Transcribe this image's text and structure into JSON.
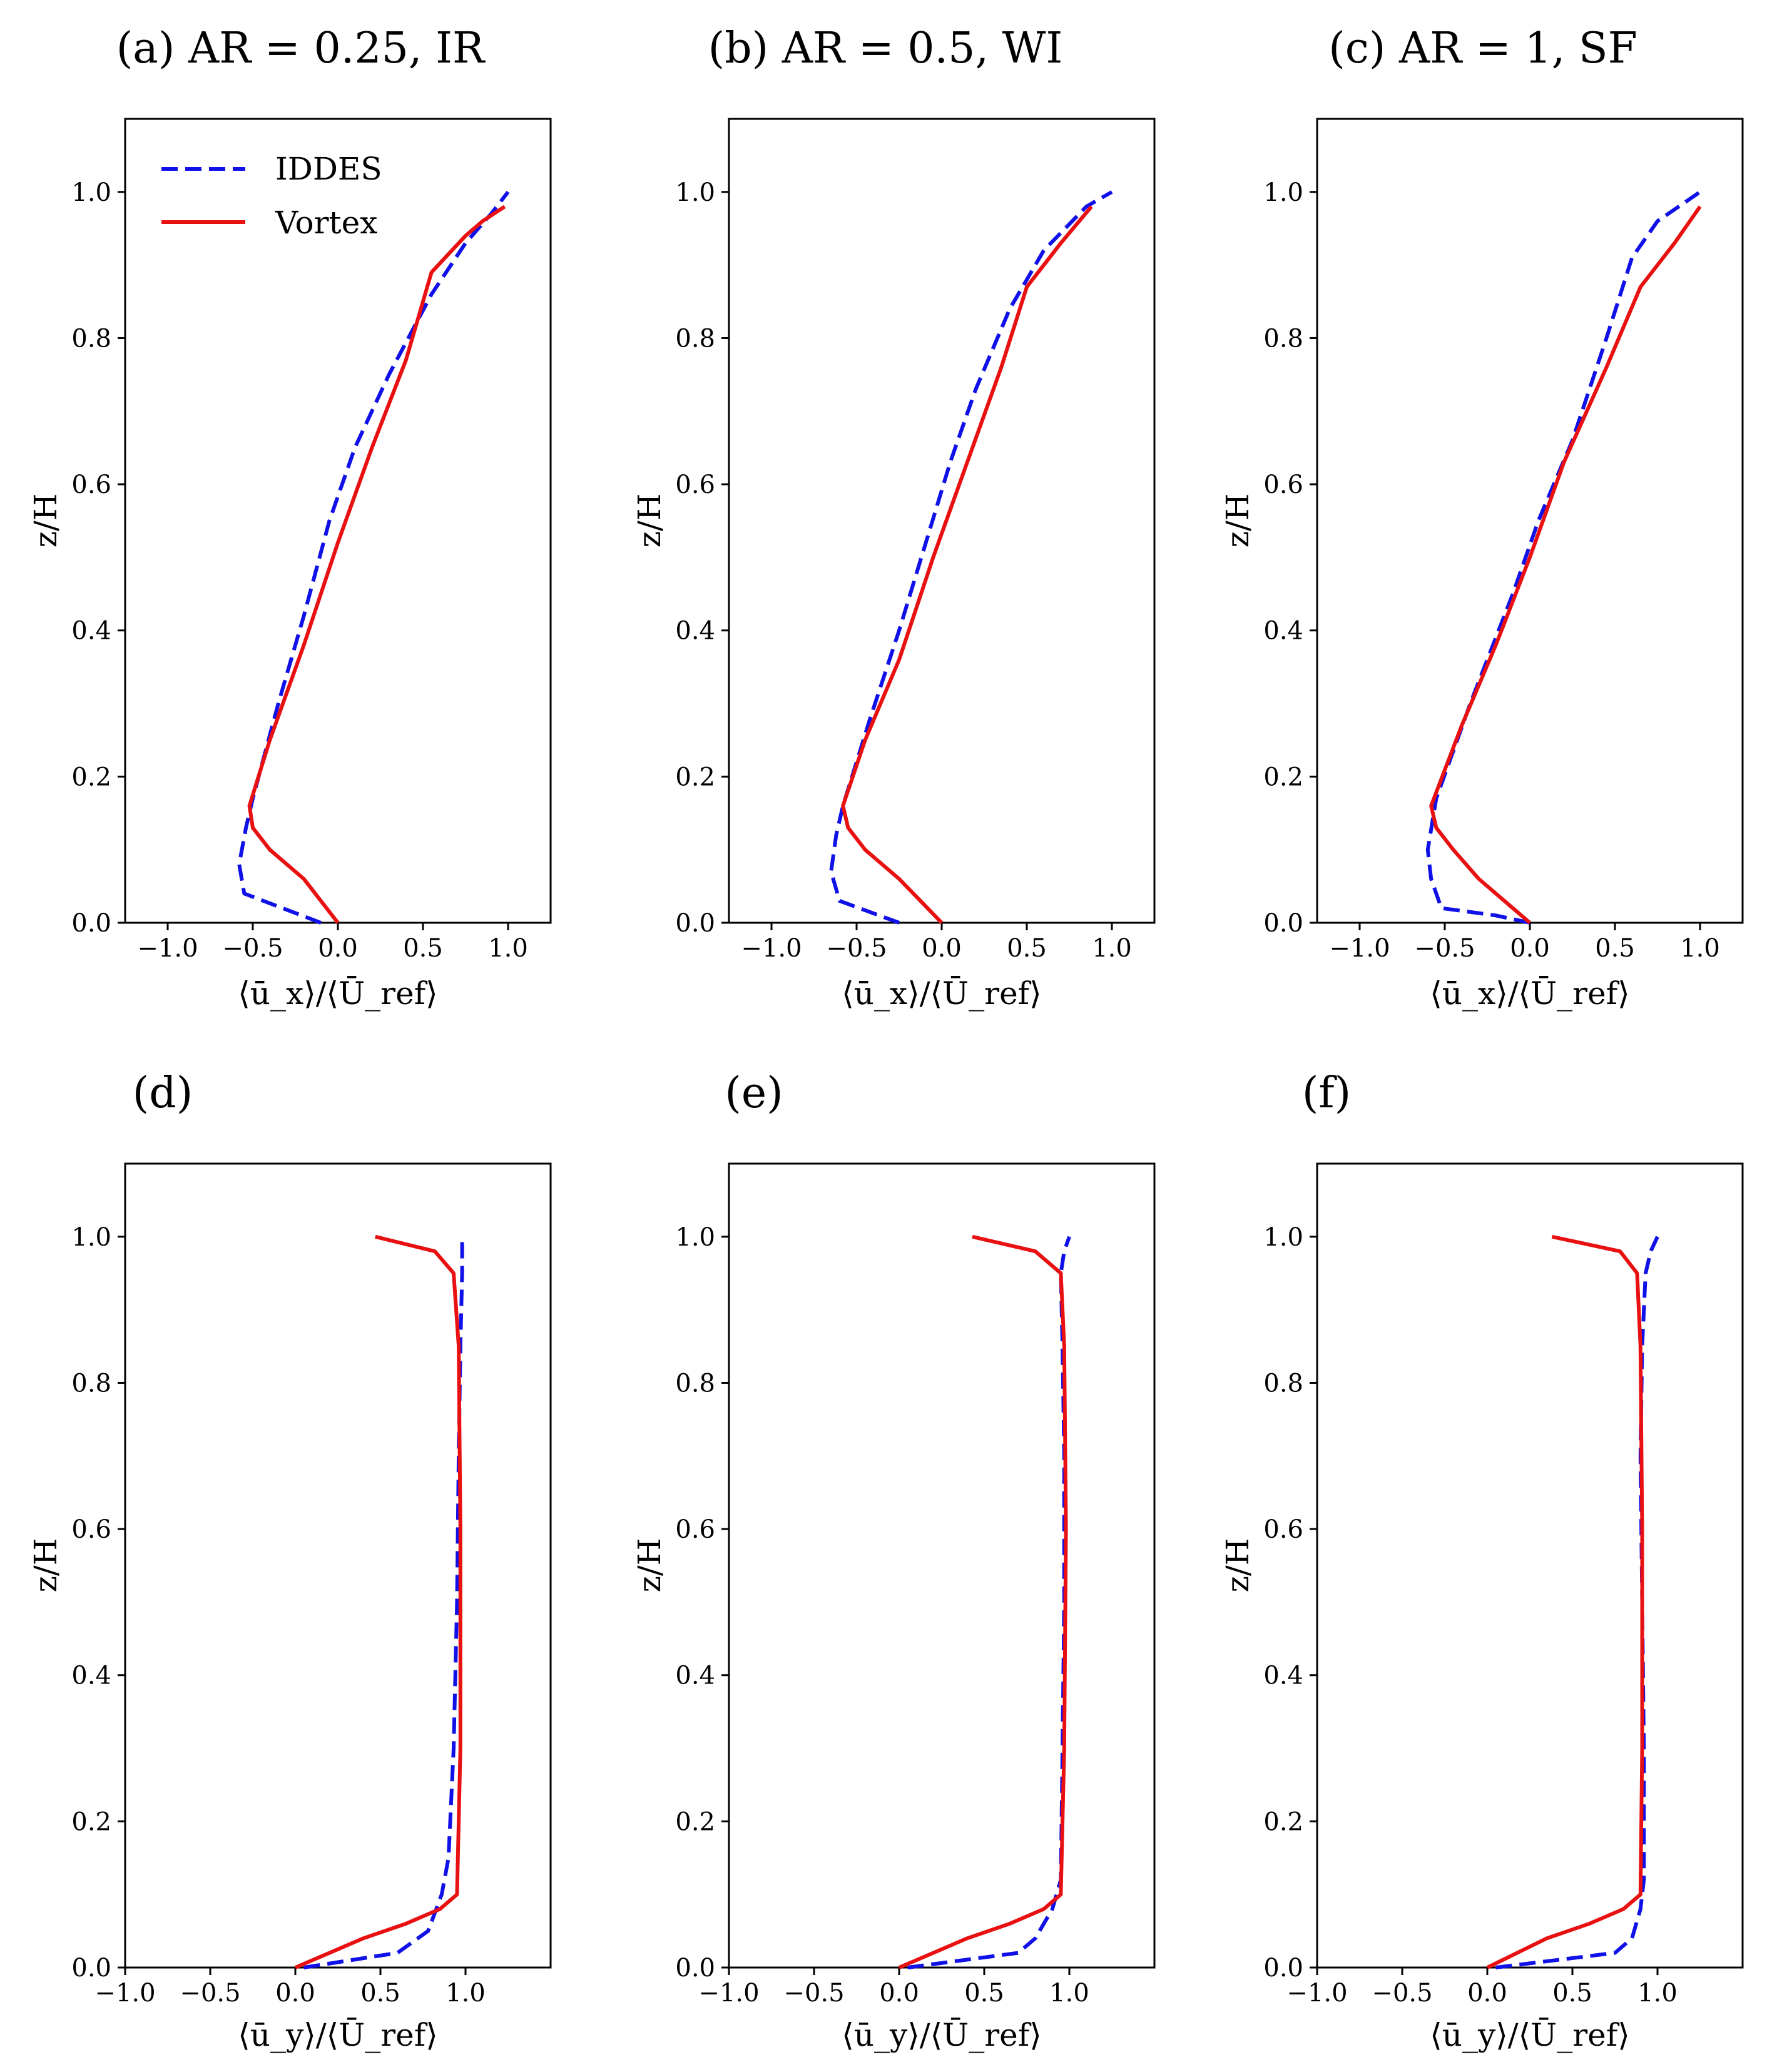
{
  "legend": {
    "iddes": "IDDES",
    "vortex": "Vortex",
    "iddes_color": "#1010e8",
    "vortex_color": "#e81010"
  },
  "chart_data": [
    {
      "type": "line",
      "title": "(a) AR = 0.25, IR",
      "xlabel": "⟨ū_x⟩/⟨Ū_ref⟩",
      "ylabel": "z/H",
      "xlim": [
        -1.25,
        1.25
      ],
      "ylim": [
        0.0,
        1.1
      ],
      "xticks": [
        "−1.0",
        "−0.5",
        "0.0",
        "0.5",
        "1.0"
      ],
      "yticks": [
        "0.0",
        "0.2",
        "0.4",
        "0.6",
        "0.8",
        "1.0"
      ],
      "legend_position": "top-left",
      "series": [
        {
          "name": "IDDES",
          "x": [
            -0.1,
            -0.55,
            -0.58,
            -0.54,
            -0.5,
            -0.35,
            -0.2,
            -0.05,
            0.1,
            0.3,
            0.55,
            0.75,
            0.9,
            1.0
          ],
          "y": [
            0.0,
            0.04,
            0.08,
            0.13,
            0.17,
            0.3,
            0.42,
            0.55,
            0.65,
            0.75,
            0.86,
            0.93,
            0.97,
            1.0
          ]
        },
        {
          "name": "Vortex",
          "x": [
            0.0,
            -0.2,
            -0.4,
            -0.5,
            -0.52,
            -0.4,
            -0.2,
            0.0,
            0.2,
            0.4,
            0.55,
            0.75,
            0.85,
            0.98
          ],
          "y": [
            0.0,
            0.06,
            0.1,
            0.13,
            0.16,
            0.25,
            0.38,
            0.52,
            0.65,
            0.77,
            0.89,
            0.94,
            0.96,
            0.98
          ]
        }
      ]
    },
    {
      "type": "line",
      "title": "(b) AR = 0.5, WI",
      "xlabel": "⟨ū_x⟩/⟨Ū_ref⟩",
      "ylabel": "z/H",
      "xlim": [
        -1.25,
        1.25
      ],
      "ylim": [
        0.0,
        1.1
      ],
      "xticks": [
        "−1.0",
        "−0.5",
        "0.0",
        "0.5",
        "1.0"
      ],
      "yticks": [
        "0.0",
        "0.2",
        "0.4",
        "0.6",
        "0.8",
        "1.0"
      ],
      "series": [
        {
          "name": "IDDES",
          "x": [
            -0.25,
            -0.6,
            -0.65,
            -0.62,
            -0.58,
            -0.42,
            -0.25,
            -0.08,
            0.05,
            0.2,
            0.4,
            0.6,
            0.85,
            1.0
          ],
          "y": [
            0.0,
            0.03,
            0.07,
            0.12,
            0.16,
            0.28,
            0.4,
            0.53,
            0.63,
            0.73,
            0.84,
            0.92,
            0.98,
            1.0
          ]
        },
        {
          "name": "Vortex",
          "x": [
            0.0,
            -0.25,
            -0.45,
            -0.55,
            -0.58,
            -0.45,
            -0.25,
            -0.05,
            0.15,
            0.35,
            0.5,
            0.7,
            0.88
          ],
          "y": [
            0.0,
            0.06,
            0.1,
            0.13,
            0.16,
            0.25,
            0.36,
            0.5,
            0.63,
            0.76,
            0.87,
            0.93,
            0.98
          ]
        }
      ]
    },
    {
      "type": "line",
      "title": "(c) AR = 1, SF",
      "xlabel": "⟨ū_x⟩/⟨Ū_ref⟩",
      "ylabel": "z/H",
      "xlim": [
        -1.25,
        1.25
      ],
      "ylim": [
        0.0,
        1.1
      ],
      "xticks": [
        "−1.0",
        "−0.5",
        "0.0",
        "0.5",
        "1.0"
      ],
      "yticks": [
        "0.0",
        "0.2",
        "0.4",
        "0.6",
        "0.8",
        "1.0"
      ],
      "series": [
        {
          "name": "IDDES",
          "x": [
            0.0,
            -0.2,
            -0.52,
            -0.58,
            -0.6,
            -0.55,
            -0.35,
            -0.1,
            0.05,
            0.25,
            0.45,
            0.6,
            0.75,
            1.0
          ],
          "y": [
            0.0,
            0.01,
            0.02,
            0.06,
            0.1,
            0.17,
            0.3,
            0.45,
            0.55,
            0.66,
            0.8,
            0.91,
            0.96,
            1.0
          ]
        },
        {
          "name": "Vortex",
          "x": [
            0.0,
            -0.3,
            -0.45,
            -0.55,
            -0.58,
            -0.4,
            -0.2,
            0.0,
            0.2,
            0.45,
            0.65,
            0.85,
            1.0
          ],
          "y": [
            0.0,
            0.06,
            0.1,
            0.13,
            0.16,
            0.27,
            0.38,
            0.5,
            0.63,
            0.76,
            0.87,
            0.93,
            0.98
          ]
        }
      ]
    },
    {
      "type": "line",
      "title": "(d)",
      "xlabel": "⟨ū_y⟩/⟨Ū_ref⟩",
      "ylabel": "z/H",
      "xlim": [
        -1.0,
        1.5
      ],
      "ylim": [
        0.0,
        1.1
      ],
      "xticks": [
        "−1.0",
        "−0.5",
        "0.0",
        "0.5",
        "1.0"
      ],
      "yticks": [
        "0.0",
        "0.2",
        "0.4",
        "0.6",
        "0.8",
        "1.0"
      ],
      "series": [
        {
          "name": "IDDES",
          "x": [
            0.05,
            0.6,
            0.78,
            0.86,
            0.9,
            0.93,
            0.95,
            0.96,
            0.97,
            0.98,
            0.98
          ],
          "y": [
            0.0,
            0.02,
            0.05,
            0.1,
            0.15,
            0.3,
            0.5,
            0.7,
            0.85,
            0.95,
            1.0
          ]
        },
        {
          "name": "Vortex",
          "x": [
            0.0,
            0.4,
            0.65,
            0.85,
            0.95,
            0.97,
            0.97,
            0.96,
            0.93,
            0.82,
            0.47
          ],
          "y": [
            0.0,
            0.04,
            0.06,
            0.08,
            0.1,
            0.3,
            0.6,
            0.85,
            0.95,
            0.98,
            1.0
          ]
        }
      ]
    },
    {
      "type": "line",
      "title": "(e)",
      "xlabel": "⟨ū_y⟩/⟨Ū_ref⟩",
      "ylabel": "z/H",
      "xlim": [
        -1.0,
        1.5
      ],
      "ylim": [
        0.0,
        1.1
      ],
      "xticks": [
        "−1.0",
        "−0.5",
        "0.0",
        "0.5",
        "1.0"
      ],
      "yticks": [
        "0.0",
        "0.2",
        "0.4",
        "0.6",
        "0.8",
        "1.0"
      ],
      "series": [
        {
          "name": "IDDES",
          "x": [
            0.05,
            0.7,
            0.8,
            0.9,
            0.95,
            0.96,
            0.97,
            0.97,
            0.96,
            0.95,
            0.97,
            1.0
          ],
          "y": [
            0.0,
            0.02,
            0.04,
            0.08,
            0.12,
            0.3,
            0.5,
            0.7,
            0.85,
            0.95,
            0.98,
            1.0
          ]
        },
        {
          "name": "Vortex",
          "x": [
            0.0,
            0.4,
            0.65,
            0.85,
            0.95,
            0.97,
            0.98,
            0.97,
            0.95,
            0.8,
            0.43
          ],
          "y": [
            0.0,
            0.04,
            0.06,
            0.08,
            0.1,
            0.3,
            0.6,
            0.85,
            0.95,
            0.98,
            1.0
          ]
        }
      ]
    },
    {
      "type": "line",
      "title": "(f)",
      "xlabel": "⟨ū_y⟩/⟨Ū_ref⟩",
      "ylabel": "z/H",
      "xlim": [
        -1.0,
        1.5
      ],
      "ylim": [
        0.0,
        1.1
      ],
      "xticks": [
        "−1.0",
        "−0.5",
        "0.0",
        "0.5",
        "1.0"
      ],
      "yticks": [
        "0.0",
        "0.2",
        "0.4",
        "0.6",
        "0.8",
        "1.0"
      ],
      "series": [
        {
          "name": "IDDES",
          "x": [
            0.05,
            0.75,
            0.85,
            0.9,
            0.92,
            0.92,
            0.91,
            0.9,
            0.91,
            0.93,
            0.96,
            1.0
          ],
          "y": [
            0.0,
            0.02,
            0.04,
            0.08,
            0.12,
            0.3,
            0.5,
            0.7,
            0.85,
            0.95,
            0.98,
            1.0
          ]
        },
        {
          "name": "Vortex",
          "x": [
            0.0,
            0.35,
            0.6,
            0.8,
            0.9,
            0.91,
            0.91,
            0.9,
            0.88,
            0.78,
            0.38
          ],
          "y": [
            0.0,
            0.04,
            0.06,
            0.08,
            0.1,
            0.3,
            0.6,
            0.85,
            0.95,
            0.98,
            1.0
          ]
        }
      ]
    }
  ]
}
